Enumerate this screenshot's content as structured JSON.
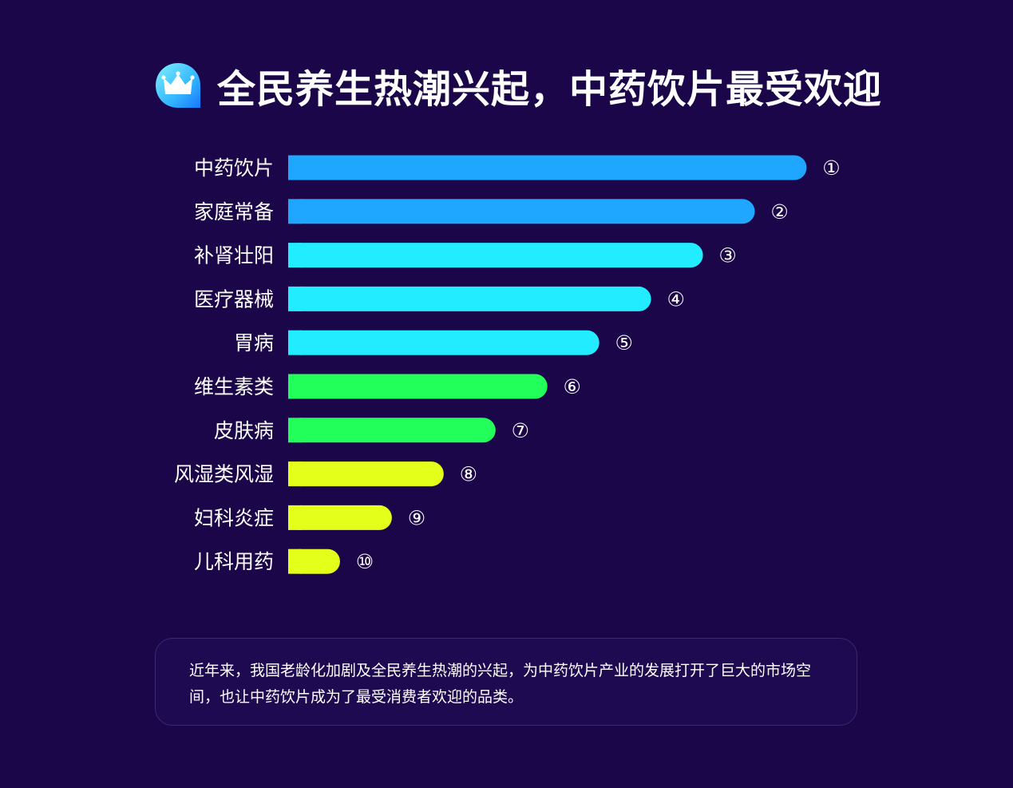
{
  "header": {
    "title": "全民养生热潮兴起，中药饮片最受欢迎",
    "icon": "crown-icon"
  },
  "chart_data": {
    "type": "bar",
    "orientation": "horizontal",
    "title": "全民养生热潮兴起，中药饮片最受欢迎",
    "xlabel": "",
    "ylabel": "",
    "grid": false,
    "categories": [
      "中药饮片",
      "家庭常备",
      "补肾壮阳",
      "医疗器械",
      "胃病",
      "维生素类",
      "皮肤病",
      "风湿类风湿",
      "妇科炎症",
      "儿科用药"
    ],
    "values": [
      10,
      9,
      8,
      7,
      6,
      5,
      4,
      3,
      2,
      1
    ],
    "rank_labels": [
      "①",
      "②",
      "③",
      "④",
      "⑤",
      "⑥",
      "⑦",
      "⑧",
      "⑨",
      "⑩"
    ],
    "colors": [
      "#1fa6ff",
      "#1fa6ff",
      "#22ecff",
      "#22ecff",
      "#22ecff",
      "#22ff5a",
      "#22ff5a",
      "#e3ff1a",
      "#e3ff1a",
      "#e3ff1a"
    ],
    "xlim": [
      0,
      10
    ]
  },
  "description": {
    "text": "近年来，我国老龄化加剧及全民养生热潮的兴起，为中药饮片产业的发展打开了巨大的市场空间，也让中药饮片成为了最受消费者欢迎的品类。"
  }
}
